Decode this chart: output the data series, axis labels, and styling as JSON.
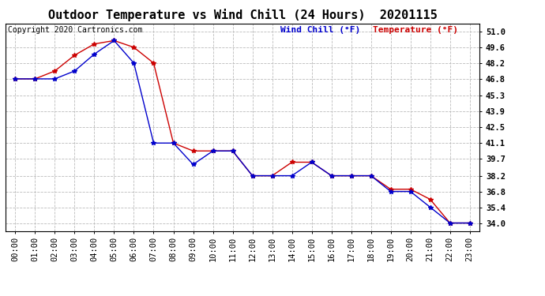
{
  "title": "Outdoor Temperature vs Wind Chill (24 Hours)  20201115",
  "copyright": "Copyright 2020 Cartronics.com",
  "legend_wind_chill": "Wind Chill (°F)",
  "legend_temperature": "Temperature (°F)",
  "x_labels": [
    "00:00",
    "01:00",
    "02:00",
    "03:00",
    "04:00",
    "05:00",
    "06:00",
    "07:00",
    "08:00",
    "09:00",
    "10:00",
    "11:00",
    "12:00",
    "13:00",
    "14:00",
    "15:00",
    "16:00",
    "17:00",
    "18:00",
    "19:00",
    "20:00",
    "21:00",
    "22:00",
    "23:00"
  ],
  "temperature": [
    46.8,
    46.8,
    47.5,
    48.9,
    49.9,
    50.2,
    49.6,
    48.2,
    41.1,
    40.4,
    40.4,
    40.4,
    38.2,
    38.2,
    39.4,
    39.4,
    38.2,
    38.2,
    38.2,
    37.0,
    37.0,
    36.1,
    34.0,
    34.0
  ],
  "wind_chill": [
    46.8,
    46.8,
    46.8,
    47.5,
    49.0,
    50.2,
    48.2,
    41.1,
    41.1,
    39.2,
    40.4,
    40.4,
    38.2,
    38.2,
    38.2,
    39.4,
    38.2,
    38.2,
    38.2,
    36.8,
    36.8,
    35.4,
    34.0,
    34.0
  ],
  "temp_color": "#cc0000",
  "wind_chill_color": "#0000cc",
  "y_ticks": [
    34.0,
    35.4,
    36.8,
    38.2,
    39.7,
    41.1,
    42.5,
    43.9,
    45.3,
    46.8,
    48.2,
    49.6,
    51.0
  ],
  "y_min": 33.3,
  "y_max": 51.7,
  "background_color": "#ffffff",
  "grid_color": "#bbbbbb",
  "title_fontsize": 11,
  "copyright_fontsize": 7,
  "legend_fontsize": 8,
  "tick_fontsize": 7.5
}
